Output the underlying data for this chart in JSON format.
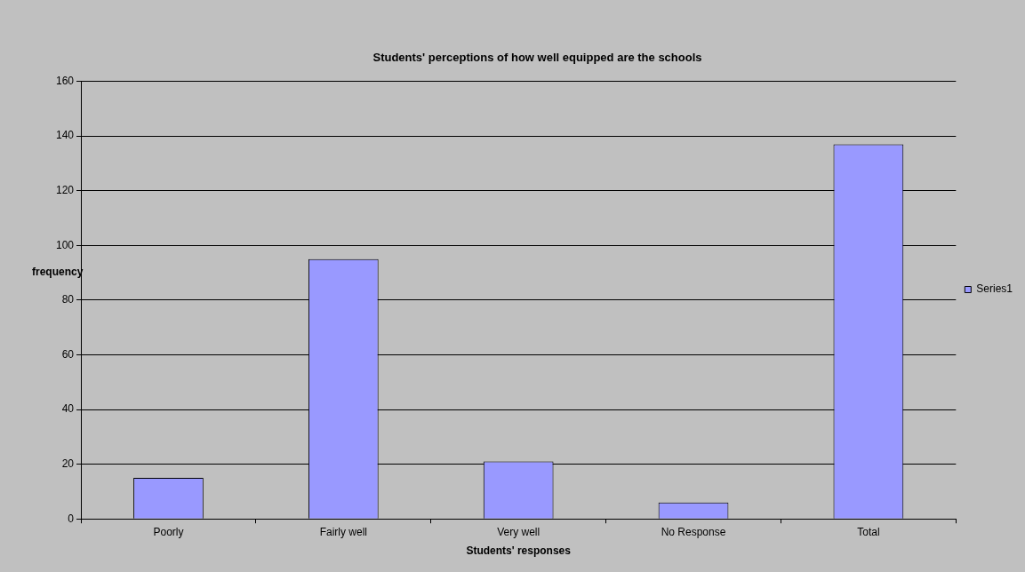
{
  "chart_data": {
    "type": "bar",
    "title": "Students' perceptions of how well equipped are the schools",
    "xlabel": "Students' responses",
    "ylabel": "frequency",
    "categories": [
      "Poorly",
      "Fairly well",
      "Very well",
      "No Response",
      "Total"
    ],
    "series": [
      {
        "name": "Series1",
        "color": "#9999ff",
        "values": [
          15,
          95,
          21,
          6,
          137
        ]
      }
    ],
    "ylim": [
      0,
      160
    ],
    "yticks": [
      0,
      20,
      40,
      60,
      80,
      100,
      120,
      140,
      160
    ],
    "grid": "y",
    "legend": "right"
  }
}
